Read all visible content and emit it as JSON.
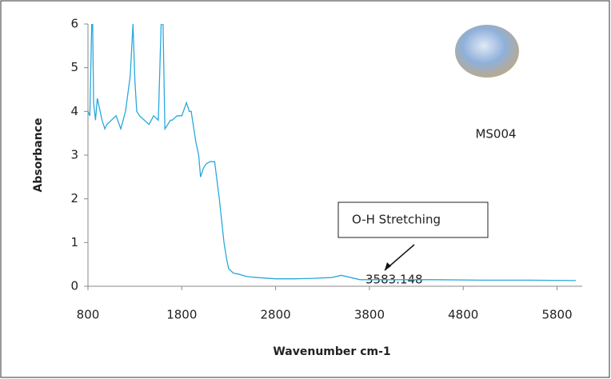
{
  "chart_data": {
    "type": "line",
    "xlabel": "Wavenumber cm-1",
    "ylabel": "Absorbance",
    "x": [
      800,
      820,
      840,
      850,
      860,
      880,
      900,
      920,
      950,
      980,
      1000,
      1050,
      1100,
      1150,
      1200,
      1250,
      1280,
      1300,
      1320,
      1350,
      1400,
      1450,
      1500,
      1550,
      1580,
      1600,
      1620,
      1650,
      1680,
      1700,
      1750,
      1800,
      1850,
      1880,
      1900,
      1950,
      1980,
      2000,
      2030,
      2060,
      2100,
      2150,
      2200,
      2250,
      2280,
      2300,
      2350,
      2400,
      2450,
      2500,
      2600,
      2800,
      3000,
      3200,
      3400,
      3500,
      3600,
      3700,
      3800,
      4000,
      4500,
      5000,
      5500,
      6000
    ],
    "values": [
      4.0,
      3.9,
      6,
      6,
      4.2,
      3.8,
      4.3,
      4.1,
      3.8,
      3.6,
      3.7,
      3.8,
      3.9,
      3.6,
      4.0,
      4.8,
      6,
      4.7,
      4.0,
      3.9,
      3.8,
      3.7,
      3.9,
      3.8,
      6,
      6,
      3.6,
      3.7,
      3.8,
      3.8,
      3.9,
      3.9,
      4.2,
      4.0,
      4.0,
      3.3,
      3.0,
      2.5,
      2.7,
      2.8,
      2.85,
      2.85,
      2.0,
      1.0,
      0.6,
      0.4,
      0.3,
      0.28,
      0.25,
      0.22,
      0.2,
      0.17,
      0.17,
      0.18,
      0.2,
      0.25,
      0.2,
      0.15,
      0.15,
      0.15,
      0.15,
      0.14,
      0.14,
      0.13
    ],
    "color": "#29a8dc",
    "xlim": [
      800,
      6000
    ],
    "ylim": [
      0,
      6
    ],
    "xticks": [
      800,
      1800,
      2800,
      3800,
      4800,
      5800
    ],
    "yticks": [
      0,
      1,
      2,
      3,
      4,
      5,
      6
    ],
    "grid": false,
    "annotations": [
      {
        "text": "MS004"
      },
      {
        "text": "O-H Stretching"
      },
      {
        "text": "3583.148"
      }
    ]
  }
}
